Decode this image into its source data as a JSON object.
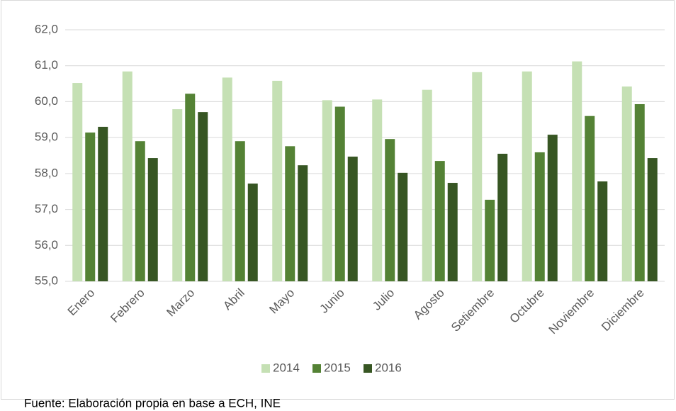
{
  "chart_data": {
    "type": "bar",
    "categories": [
      "Enero",
      "Febrero",
      "Marzo",
      "Abril",
      "Mayo",
      "Junio",
      "Julio",
      "Agosto",
      "Setiembre",
      "Octubre",
      "Noviembre",
      "Diciembre"
    ],
    "series": [
      {
        "name": "2014",
        "color": "#c5e0b4",
        "values": [
          60.52,
          60.84,
          59.79,
          60.67,
          60.58,
          60.04,
          60.06,
          60.33,
          60.82,
          60.84,
          61.12,
          60.42
        ]
      },
      {
        "name": "2015",
        "color": "#548235",
        "values": [
          59.14,
          58.9,
          60.22,
          58.9,
          58.76,
          59.86,
          58.96,
          58.35,
          57.27,
          58.59,
          59.6,
          59.93
        ]
      },
      {
        "name": "2016",
        "color": "#375623",
        "values": [
          59.3,
          58.43,
          59.71,
          57.72,
          58.23,
          58.47,
          58.02,
          57.74,
          58.55,
          59.08,
          57.78,
          58.43
        ]
      }
    ],
    "ylim": [
      55,
      62
    ],
    "yticks": [
      {
        "value": 55,
        "label": "55,0"
      },
      {
        "value": 56,
        "label": "56,0"
      },
      {
        "value": 57,
        "label": "57,0"
      },
      {
        "value": 58,
        "label": "58,0"
      },
      {
        "value": 59,
        "label": "59,0"
      },
      {
        "value": 60,
        "label": "60,0"
      },
      {
        "value": 61,
        "label": "61,0"
      },
      {
        "value": 62,
        "label": "62,0"
      }
    ],
    "grid": true,
    "legend": "bottom",
    "source": "Fuente: Elaboración propia en base a ECH, INE"
  }
}
